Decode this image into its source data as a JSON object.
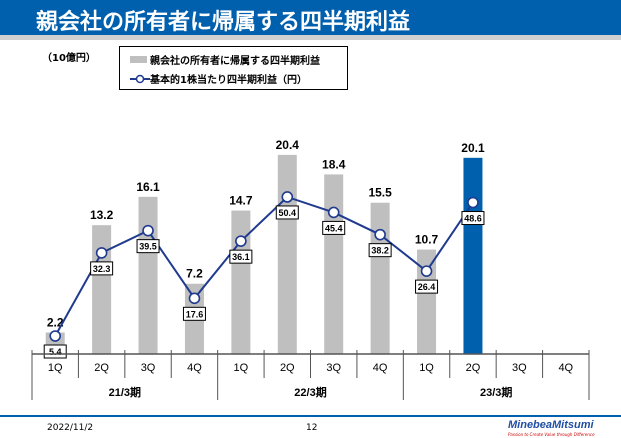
{
  "title": "親会社の所有者に帰属する四半期利益",
  "footer": {
    "date": "2022/11/2",
    "page": "12",
    "logo": "MinebeaMitsumi",
    "tagline": "Passion to Create Value through Difference"
  },
  "chart_data": {
    "type": "bar+line",
    "unit_label": "（10億円）",
    "categories": [
      "1Q",
      "2Q",
      "3Q",
      "4Q",
      "1Q",
      "2Q",
      "3Q",
      "4Q",
      "1Q",
      "2Q",
      "3Q",
      "4Q"
    ],
    "groups": [
      "21/3期",
      "22/3期",
      "23/3期"
    ],
    "series": [
      {
        "name": "親会社の所有者に帰属する四半期利益",
        "type": "bar",
        "color": "#bfbfbf",
        "highlight_color": "#0060ae",
        "highlight_index": 9,
        "values": [
          2.2,
          13.2,
          16.1,
          7.2,
          14.7,
          20.4,
          18.4,
          15.5,
          10.7,
          20.1,
          null,
          null
        ]
      },
      {
        "name": "基本的1株当たり四半期利益（円）",
        "type": "line",
        "color": "#1f3a8f",
        "values": [
          5.4,
          32.3,
          39.5,
          17.6,
          36.1,
          50.4,
          45.4,
          38.2,
          26.4,
          48.6,
          null,
          null
        ]
      }
    ]
  }
}
